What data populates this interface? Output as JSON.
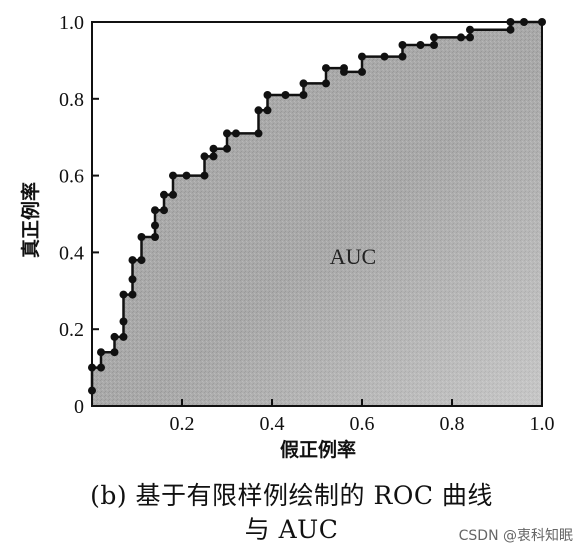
{
  "chart_data": {
    "type": "line",
    "style": "step",
    "xlabel": "假正例率",
    "ylabel": "真正例率",
    "xlim": [
      0,
      1.0
    ],
    "ylim": [
      0,
      1.0
    ],
    "xticks": [
      "0.2",
      "0.4",
      "0.6",
      "0.8",
      "1.0"
    ],
    "xtick_values": [
      0.2,
      0.4,
      0.6,
      0.8,
      1.0
    ],
    "yticks": [
      "0",
      "0.2",
      "0.4",
      "0.6",
      "0.8",
      "1.0"
    ],
    "ytick_values": [
      0,
      0.2,
      0.4,
      0.6,
      0.8,
      1.0
    ],
    "area_label": "AUC",
    "fill_color": "#a8a8a8",
    "line_color": "#111111",
    "legend": "none",
    "grid": false,
    "points": [
      [
        0.0,
        0.04
      ],
      [
        0.0,
        0.1
      ],
      [
        0.02,
        0.1
      ],
      [
        0.02,
        0.14
      ],
      [
        0.05,
        0.14
      ],
      [
        0.05,
        0.18
      ],
      [
        0.07,
        0.18
      ],
      [
        0.07,
        0.22
      ],
      [
        0.07,
        0.29
      ],
      [
        0.09,
        0.29
      ],
      [
        0.09,
        0.33
      ],
      [
        0.09,
        0.38
      ],
      [
        0.11,
        0.38
      ],
      [
        0.11,
        0.44
      ],
      [
        0.14,
        0.44
      ],
      [
        0.14,
        0.47
      ],
      [
        0.14,
        0.51
      ],
      [
        0.16,
        0.51
      ],
      [
        0.16,
        0.55
      ],
      [
        0.18,
        0.55
      ],
      [
        0.18,
        0.6
      ],
      [
        0.21,
        0.6
      ],
      [
        0.25,
        0.6
      ],
      [
        0.25,
        0.65
      ],
      [
        0.27,
        0.65
      ],
      [
        0.27,
        0.67
      ],
      [
        0.3,
        0.67
      ],
      [
        0.3,
        0.71
      ],
      [
        0.32,
        0.71
      ],
      [
        0.37,
        0.71
      ],
      [
        0.37,
        0.77
      ],
      [
        0.39,
        0.77
      ],
      [
        0.39,
        0.81
      ],
      [
        0.43,
        0.81
      ],
      [
        0.47,
        0.81
      ],
      [
        0.47,
        0.84
      ],
      [
        0.52,
        0.84
      ],
      [
        0.52,
        0.88
      ],
      [
        0.56,
        0.88
      ],
      [
        0.56,
        0.87
      ],
      [
        0.6,
        0.87
      ],
      [
        0.6,
        0.91
      ],
      [
        0.65,
        0.91
      ],
      [
        0.69,
        0.91
      ],
      [
        0.69,
        0.94
      ],
      [
        0.73,
        0.94
      ],
      [
        0.76,
        0.94
      ],
      [
        0.76,
        0.96
      ],
      [
        0.82,
        0.96
      ],
      [
        0.84,
        0.96
      ],
      [
        0.84,
        0.98
      ],
      [
        0.93,
        0.98
      ],
      [
        0.93,
        1.0
      ],
      [
        0.96,
        1.0
      ],
      [
        1.0,
        1.0
      ]
    ]
  },
  "caption": {
    "line1": "(b) 基于有限样例绘制的 ROC 曲线",
    "line2": "与 AUC"
  },
  "watermark": "CSDN @衷科知眠"
}
